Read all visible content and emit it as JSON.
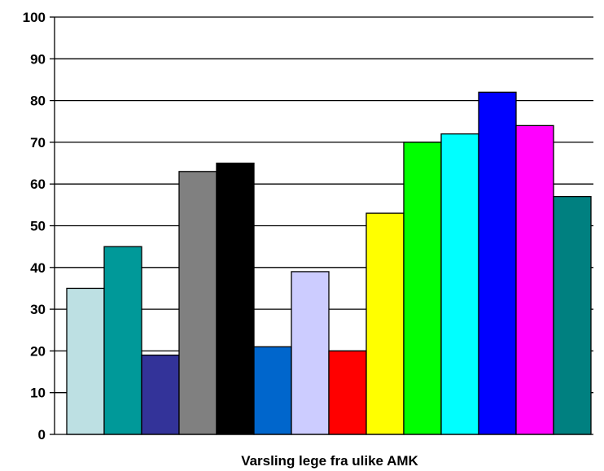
{
  "chart_data": {
    "type": "bar",
    "title": "",
    "xlabel": "Varsling lege fra ulike AMK",
    "ylabel": "",
    "ylim": [
      0,
      100
    ],
    "yticks": [
      0,
      10,
      20,
      30,
      40,
      50,
      60,
      70,
      80,
      90,
      100
    ],
    "grid": true,
    "legend": "none",
    "values": [
      35,
      45,
      19,
      63,
      65,
      21,
      39,
      20,
      53,
      70,
      72,
      82,
      74,
      57
    ],
    "colors": [
      "#bde0e3",
      "#009999",
      "#333399",
      "#808080",
      "#000000",
      "#0066cc",
      "#ccccff",
      "#ff0000",
      "#ffff00",
      "#00ff00",
      "#00ffff",
      "#0000ff",
      "#ff00ff",
      "#008080"
    ]
  }
}
